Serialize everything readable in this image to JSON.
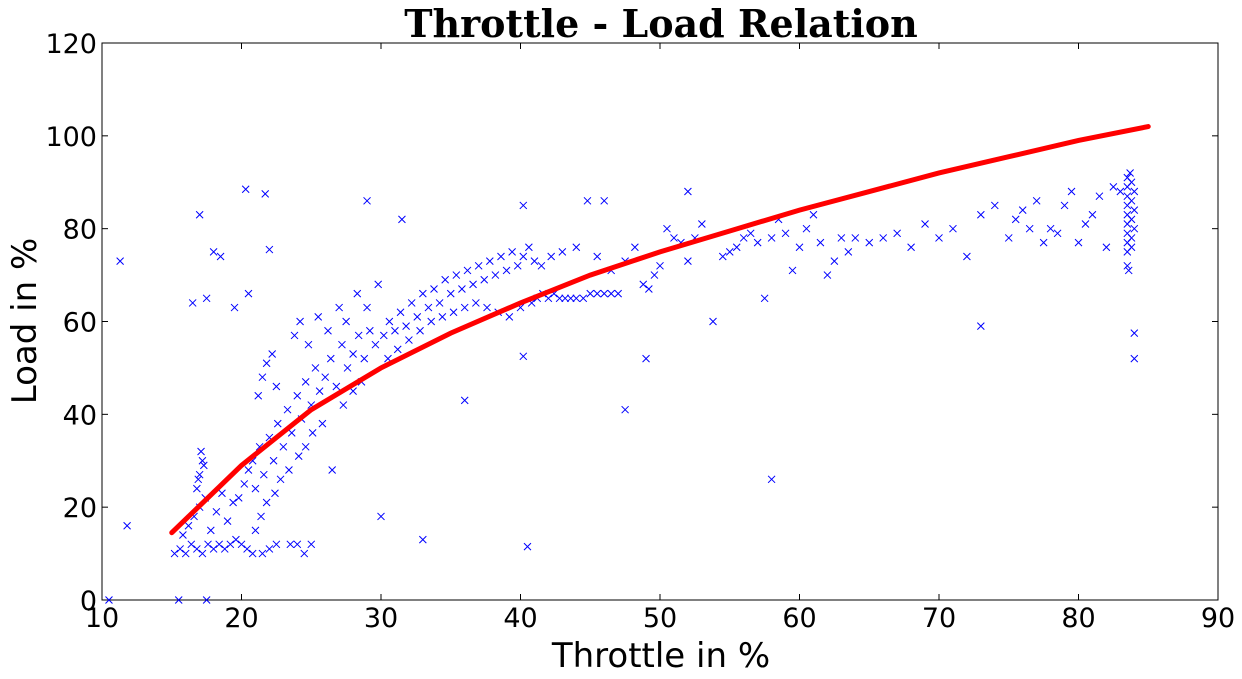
{
  "chart_data": {
    "type": "scatter",
    "title": "Throttle - Load Relation",
    "xlabel": "Throttle in %",
    "ylabel": "Load in %",
    "xlim": [
      10,
      90
    ],
    "ylim": [
      0,
      120
    ],
    "xticks": [
      10,
      20,
      30,
      40,
      50,
      60,
      70,
      80,
      90
    ],
    "yticks": [
      0,
      20,
      40,
      60,
      80,
      100,
      120
    ],
    "grid": false,
    "legend": "none",
    "colors": {
      "points": "#0000ff",
      "fit": "#ff0000"
    },
    "series": [
      {
        "kind": "scatter",
        "marker": "x",
        "points": [
          [
            10.5,
            0
          ],
          [
            11.3,
            73
          ],
          [
            11.8,
            16
          ],
          [
            15.5,
            0
          ],
          [
            17.5,
            0
          ],
          [
            15.2,
            10
          ],
          [
            15.6,
            11
          ],
          [
            16.0,
            10
          ],
          [
            16.4,
            12
          ],
          [
            16.8,
            11
          ],
          [
            17.2,
            10
          ],
          [
            17.6,
            12
          ],
          [
            18.0,
            11
          ],
          [
            18.4,
            12
          ],
          [
            18.8,
            11
          ],
          [
            19.2,
            12
          ],
          [
            19.6,
            13
          ],
          [
            20.0,
            12
          ],
          [
            20.4,
            11
          ],
          [
            20.8,
            10
          ],
          [
            21.5,
            10
          ],
          [
            22.0,
            11
          ],
          [
            15.8,
            14
          ],
          [
            16.2,
            16
          ],
          [
            16.6,
            18
          ],
          [
            17.0,
            20
          ],
          [
            17.4,
            22
          ],
          [
            17.8,
            15
          ],
          [
            18.2,
            19
          ],
          [
            18.6,
            23
          ],
          [
            19.0,
            17
          ],
          [
            19.4,
            21
          ],
          [
            16.8,
            24
          ],
          [
            17.0,
            27
          ],
          [
            17.2,
            30
          ],
          [
            17.1,
            32
          ],
          [
            16.9,
            26
          ],
          [
            17.3,
            29
          ],
          [
            19.8,
            22
          ],
          [
            20.2,
            25
          ],
          [
            20.5,
            28
          ],
          [
            20.8,
            30
          ],
          [
            21.0,
            24
          ],
          [
            21.3,
            33
          ],
          [
            21.6,
            27
          ],
          [
            22.0,
            35
          ],
          [
            22.3,
            30
          ],
          [
            22.6,
            38
          ],
          [
            23.0,
            33
          ],
          [
            23.3,
            41
          ],
          [
            23.6,
            36
          ],
          [
            24.0,
            44
          ],
          [
            24.3,
            39
          ],
          [
            24.6,
            47
          ],
          [
            25.0,
            42
          ],
          [
            25.3,
            50
          ],
          [
            25.6,
            45
          ],
          [
            26.0,
            48
          ],
          [
            26.4,
            52
          ],
          [
            26.8,
            46
          ],
          [
            27.2,
            55
          ],
          [
            27.6,
            50
          ],
          [
            28.0,
            53
          ],
          [
            28.4,
            57
          ],
          [
            28.8,
            52
          ],
          [
            29.2,
            58
          ],
          [
            29.6,
            55
          ],
          [
            21.2,
            44
          ],
          [
            21.5,
            48
          ],
          [
            21.8,
            51
          ],
          [
            22.2,
            53
          ],
          [
            22.5,
            46
          ],
          [
            23.8,
            57
          ],
          [
            24.2,
            60
          ],
          [
            24.8,
            55
          ],
          [
            25.5,
            61
          ],
          [
            26.2,
            58
          ],
          [
            27.0,
            63
          ],
          [
            27.5,
            60
          ],
          [
            28.3,
            66
          ],
          [
            29.0,
            63
          ],
          [
            29.8,
            68
          ],
          [
            21.0,
            15
          ],
          [
            21.4,
            18
          ],
          [
            21.8,
            21
          ],
          [
            22.4,
            23
          ],
          [
            22.8,
            26
          ],
          [
            23.4,
            28
          ],
          [
            24.1,
            31
          ],
          [
            24.6,
            33
          ],
          [
            25.1,
            36
          ],
          [
            25.8,
            38
          ],
          [
            26.5,
            28
          ],
          [
            27.3,
            42
          ],
          [
            28.0,
            45
          ],
          [
            28.6,
            47
          ],
          [
            22.5,
            12
          ],
          [
            23.5,
            12
          ],
          [
            24.0,
            12
          ],
          [
            24.5,
            10
          ],
          [
            25.0,
            12
          ],
          [
            33.0,
            13
          ],
          [
            30.0,
            18
          ],
          [
            40.5,
            11.5
          ],
          [
            30.2,
            57
          ],
          [
            30.6,
            60
          ],
          [
            31.0,
            58
          ],
          [
            31.4,
            62
          ],
          [
            31.8,
            59
          ],
          [
            32.2,
            64
          ],
          [
            32.6,
            61
          ],
          [
            33.0,
            66
          ],
          [
            33.4,
            63
          ],
          [
            33.8,
            67
          ],
          [
            34.2,
            64
          ],
          [
            34.6,
            69
          ],
          [
            35.0,
            66
          ],
          [
            35.4,
            70
          ],
          [
            35.8,
            67
          ],
          [
            36.2,
            71
          ],
          [
            36.6,
            68
          ],
          [
            37.0,
            72
          ],
          [
            37.4,
            69
          ],
          [
            37.8,
            73
          ],
          [
            38.2,
            70
          ],
          [
            38.6,
            74
          ],
          [
            39.0,
            71
          ],
          [
            39.4,
            75
          ],
          [
            39.8,
            72
          ],
          [
            40.2,
            74
          ],
          [
            40.6,
            76
          ],
          [
            41.0,
            73
          ],
          [
            30.5,
            52
          ],
          [
            31.2,
            54
          ],
          [
            32.0,
            56
          ],
          [
            32.8,
            58
          ],
          [
            33.6,
            60
          ],
          [
            34.4,
            61
          ],
          [
            35.2,
            62
          ],
          [
            36.0,
            63
          ],
          [
            36.8,
            64
          ],
          [
            37.6,
            63
          ],
          [
            38.4,
            62
          ],
          [
            39.2,
            61
          ],
          [
            40.0,
            63
          ],
          [
            40.8,
            64
          ],
          [
            41.2,
            65
          ],
          [
            41.6,
            66
          ],
          [
            42.0,
            65
          ],
          [
            42.4,
            66
          ],
          [
            42.8,
            65
          ],
          [
            43.2,
            65
          ],
          [
            43.6,
            65
          ],
          [
            44.0,
            65
          ],
          [
            44.5,
            65
          ],
          [
            45.0,
            66
          ],
          [
            45.5,
            66
          ],
          [
            46.0,
            66
          ],
          [
            46.5,
            66
          ],
          [
            47.0,
            66
          ],
          [
            41.5,
            72
          ],
          [
            42.2,
            74
          ],
          [
            43.0,
            75
          ],
          [
            44.0,
            76
          ],
          [
            44.8,
            86
          ],
          [
            45.5,
            74
          ],
          [
            46.5,
            71
          ],
          [
            47.5,
            73
          ],
          [
            48.2,
            76
          ],
          [
            48.8,
            68
          ],
          [
            49.2,
            67
          ],
          [
            49.6,
            70
          ],
          [
            50.0,
            72
          ],
          [
            50.5,
            80
          ],
          [
            51.0,
            78
          ],
          [
            51.5,
            77
          ],
          [
            52.0,
            73
          ],
          [
            52.5,
            78
          ],
          [
            53.0,
            81
          ],
          [
            53.8,
            60
          ],
          [
            54.5,
            74
          ],
          [
            55.0,
            75
          ],
          [
            55.5,
            76
          ],
          [
            56.0,
            78
          ],
          [
            56.5,
            79
          ],
          [
            57.0,
            77
          ],
          [
            57.5,
            65
          ],
          [
            58.0,
            78
          ],
          [
            58.5,
            82
          ],
          [
            59.0,
            79
          ],
          [
            59.5,
            71
          ],
          [
            60.0,
            76
          ],
          [
            60.5,
            80
          ],
          [
            61.0,
            83
          ],
          [
            61.5,
            77
          ],
          [
            62.0,
            70
          ],
          [
            62.5,
            73
          ],
          [
            63.0,
            78
          ],
          [
            63.5,
            75
          ],
          [
            64.0,
            78
          ],
          [
            65.0,
            77
          ],
          [
            66.0,
            78
          ],
          [
            67.0,
            79
          ],
          [
            68.0,
            76
          ],
          [
            69.0,
            81
          ],
          [
            70.0,
            78
          ],
          [
            71.0,
            80
          ],
          [
            72.0,
            74
          ],
          [
            73.0,
            83
          ],
          [
            74.0,
            85
          ],
          [
            75.0,
            78
          ],
          [
            75.5,
            82
          ],
          [
            76.0,
            84
          ],
          [
            76.5,
            80
          ],
          [
            77.0,
            86
          ],
          [
            77.5,
            77
          ],
          [
            78.0,
            80
          ],
          [
            78.5,
            79
          ],
          [
            79.0,
            85
          ],
          [
            79.5,
            88
          ],
          [
            80.0,
            77
          ],
          [
            80.5,
            81
          ],
          [
            81.0,
            83
          ],
          [
            81.5,
            87
          ],
          [
            82.0,
            76
          ],
          [
            82.5,
            89
          ],
          [
            83.0,
            88
          ],
          [
            47.5,
            41
          ],
          [
            49.0,
            52
          ],
          [
            40.2,
            52.5
          ],
          [
            36.0,
            43
          ],
          [
            58.0,
            26
          ],
          [
            73.0,
            59
          ],
          [
            84.0,
            57.5
          ],
          [
            84.0,
            52
          ],
          [
            20.3,
            88.5
          ],
          [
            21.7,
            87.5
          ],
          [
            17.0,
            83
          ],
          [
            29.0,
            86
          ],
          [
            31.5,
            82
          ],
          [
            40.2,
            85
          ],
          [
            46.0,
            86
          ],
          [
            52.0,
            88
          ],
          [
            22.0,
            75.5
          ],
          [
            18.0,
            75
          ],
          [
            18.5,
            74
          ],
          [
            17.5,
            65
          ],
          [
            19.5,
            63
          ],
          [
            20.5,
            66
          ],
          [
            16.5,
            64
          ],
          [
            83.5,
            72
          ],
          [
            83.5,
            75
          ],
          [
            83.5,
            77
          ],
          [
            83.5,
            79
          ],
          [
            83.5,
            81
          ],
          [
            83.5,
            83
          ],
          [
            83.5,
            85
          ],
          [
            83.5,
            87
          ],
          [
            83.5,
            89
          ],
          [
            83.5,
            91
          ],
          [
            83.7,
            92
          ],
          [
            83.8,
            90
          ],
          [
            83.8,
            86
          ],
          [
            83.8,
            82
          ],
          [
            83.8,
            78
          ],
          [
            83.8,
            76
          ],
          [
            84.0,
            88
          ],
          [
            84.0,
            84
          ],
          [
            84.0,
            80
          ],
          [
            83.6,
            71
          ]
        ]
      },
      {
        "kind": "line",
        "points": [
          [
            15,
            14.5
          ],
          [
            20,
            29
          ],
          [
            25,
            41
          ],
          [
            30,
            50
          ],
          [
            35,
            57.5
          ],
          [
            40,
            64
          ],
          [
            45,
            70
          ],
          [
            50,
            75
          ],
          [
            55,
            79.5
          ],
          [
            60,
            84
          ],
          [
            65,
            88
          ],
          [
            70,
            92
          ],
          [
            75,
            95.5
          ],
          [
            80,
            99
          ],
          [
            85,
            102
          ]
        ]
      }
    ]
  }
}
